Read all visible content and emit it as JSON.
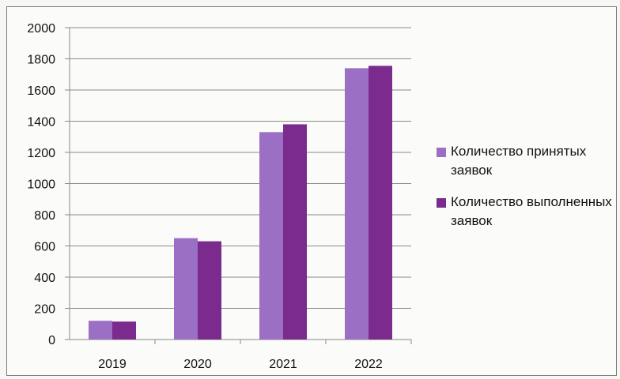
{
  "chart_data": {
    "type": "bar",
    "categories": [
      "2019",
      "2020",
      "2021",
      "2022"
    ],
    "series": [
      {
        "name": "Количество принятых заявок",
        "color": "#9b6fc4",
        "values": [
          120,
          650,
          1330,
          1740
        ]
      },
      {
        "name": "Количество выполненных заявок",
        "color": "#7b2a8e",
        "values": [
          115,
          630,
          1380,
          1755
        ]
      }
    ],
    "ylim": [
      0,
      2000
    ],
    "yticks": [
      0,
      200,
      400,
      600,
      800,
      1000,
      1200,
      1400,
      1600,
      1800,
      2000
    ],
    "grid": true,
    "legend_position": "right",
    "title": "",
    "xlabel": "",
    "ylabel": ""
  }
}
